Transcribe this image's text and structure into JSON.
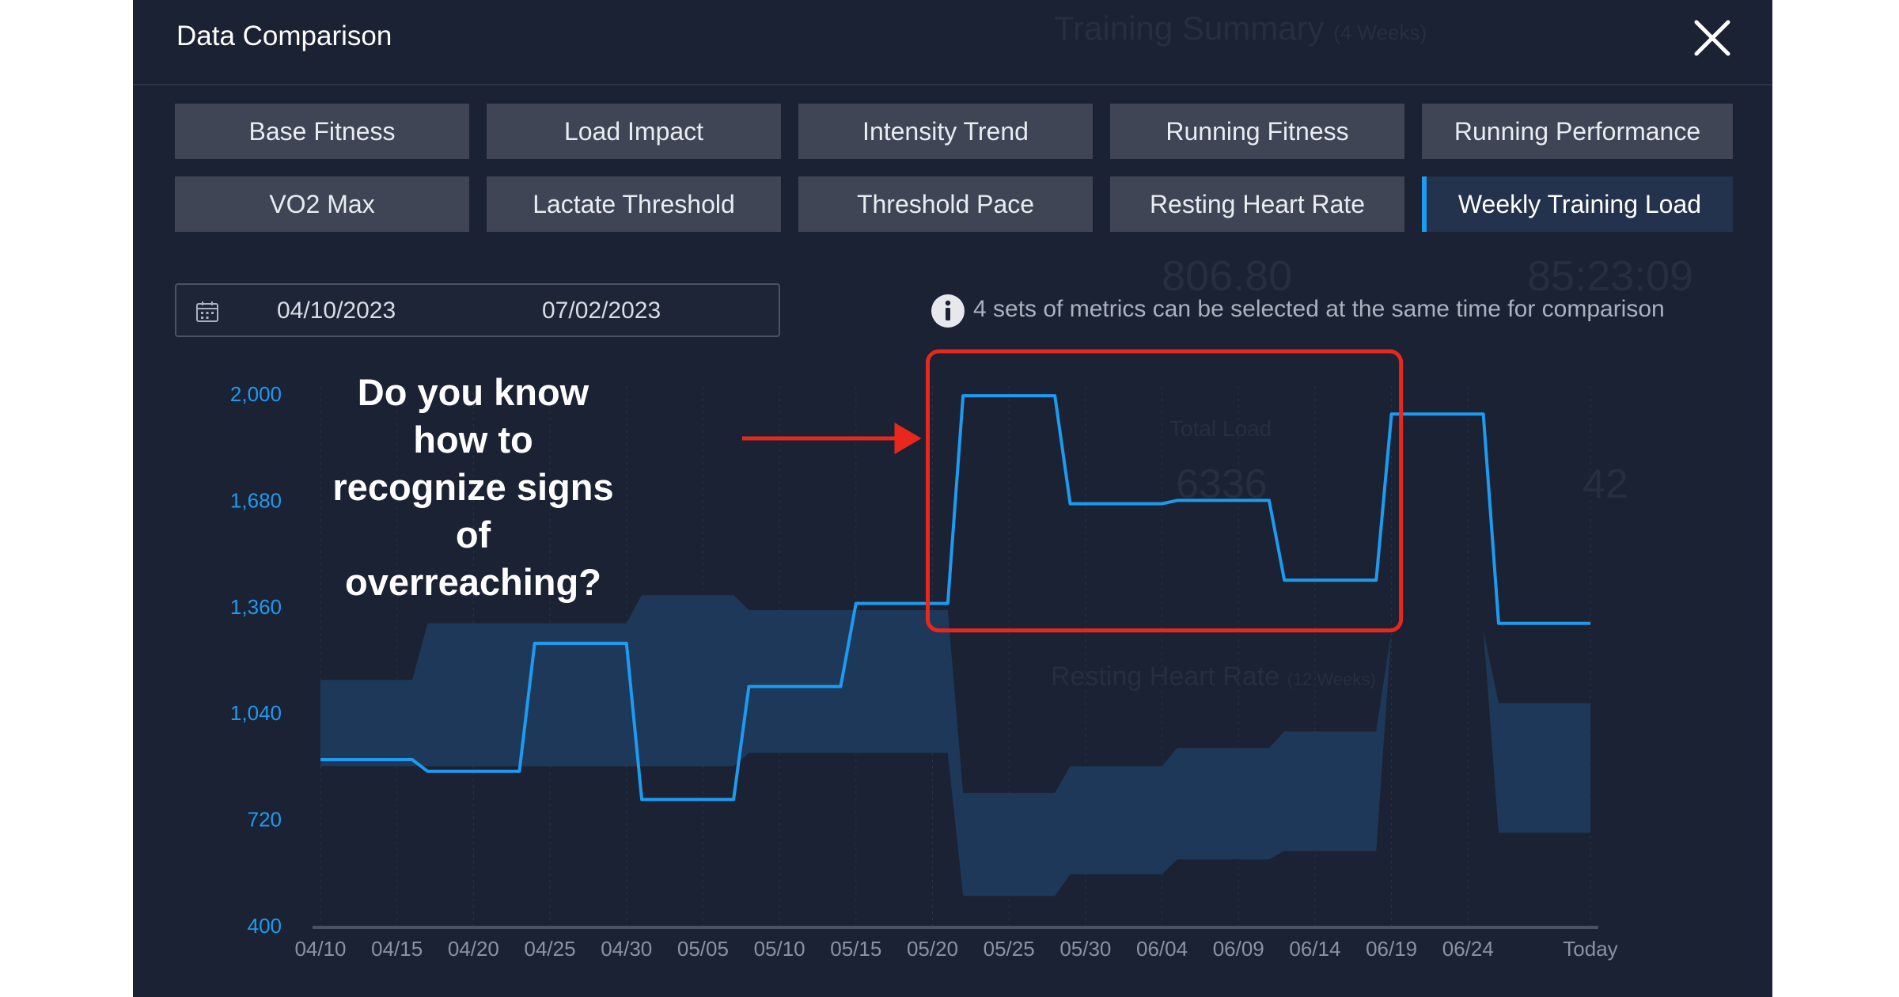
{
  "dialog": {
    "title": "Data Comparison"
  },
  "tabs": [
    {
      "label": "Base Fitness",
      "active": false
    },
    {
      "label": "Load Impact",
      "active": false
    },
    {
      "label": "Intensity Trend",
      "active": false
    },
    {
      "label": "Running Fitness",
      "active": false
    },
    {
      "label": "Running Performance",
      "active": false
    },
    {
      "label": "VO2 Max",
      "active": false
    },
    {
      "label": "Lactate Threshold",
      "active": false
    },
    {
      "label": "Threshold Pace",
      "active": false
    },
    {
      "label": "Resting Heart Rate",
      "active": false
    },
    {
      "label": "Weekly Training Load",
      "active": true
    }
  ],
  "date_range": {
    "start": "04/10/2023",
    "end": "07/02/2023"
  },
  "info": {
    "text": "4 sets of metrics can be selected at the same time for comparison"
  },
  "annotation": {
    "text": "Do you know how to recognize signs of overreaching?"
  },
  "background_ghost": {
    "summary_title": "Training Summary",
    "summary_period": "(4 Weeks)",
    "value_1": "806.80",
    "value_2": "85:23:09",
    "total_load_label": "Total Load",
    "total_load_value": "6336",
    "value_3": "42",
    "rhr_title": "Resting Heart Rate",
    "rhr_period": "(12 Weeks)"
  },
  "colors": {
    "background": "#1b2233",
    "line": "#1d9bf0",
    "band": "#1f3a5c",
    "highlight": "#e8281c",
    "axis_label": "#1d9bf0"
  },
  "chart_data": {
    "type": "line",
    "title": "",
    "x": [
      "04/10",
      "04/15",
      "04/20",
      "04/25",
      "04/30",
      "05/05",
      "05/10",
      "05/15",
      "05/20",
      "05/25",
      "05/30",
      "06/04",
      "06/09",
      "06/14",
      "06/19",
      "06/24",
      "Today"
    ],
    "yticks": [
      2000,
      1680,
      1360,
      1040,
      720,
      400
    ],
    "ylim": [
      400,
      2000
    ],
    "series": [
      {
        "role": "weekly-load-line",
        "points": [
          [
            0,
            900
          ],
          [
            6,
            900
          ],
          [
            7,
            865
          ],
          [
            13,
            865
          ],
          [
            14,
            1250
          ],
          [
            20,
            1250
          ],
          [
            21,
            780
          ],
          [
            27,
            780
          ],
          [
            28,
            1120
          ],
          [
            34,
            1120
          ],
          [
            35,
            1370
          ],
          [
            41,
            1370
          ],
          [
            42,
            1995
          ],
          [
            48,
            1995
          ],
          [
            49,
            1670
          ],
          [
            55,
            1670
          ],
          [
            56,
            1680
          ],
          [
            62,
            1680
          ],
          [
            63,
            1440
          ],
          [
            69,
            1440
          ],
          [
            70,
            1940
          ],
          [
            76,
            1940
          ],
          [
            77,
            1310
          ],
          [
            83,
            1310
          ]
        ]
      },
      {
        "role": "optimal-range-band",
        "upper": [
          [
            0,
            1140
          ],
          [
            6,
            1140
          ],
          [
            7,
            1310
          ],
          [
            13,
            1310
          ],
          [
            20,
            1310
          ],
          [
            21,
            1395
          ],
          [
            27,
            1395
          ],
          [
            28,
            1350
          ],
          [
            34,
            1350
          ],
          [
            41,
            1350
          ],
          [
            42,
            800
          ],
          [
            48,
            800
          ],
          [
            49,
            880
          ],
          [
            55,
            880
          ],
          [
            56,
            935
          ],
          [
            62,
            935
          ],
          [
            63,
            985
          ],
          [
            69,
            985
          ],
          [
            70,
            1290
          ],
          [
            76,
            1290
          ],
          [
            77,
            1070
          ],
          [
            83,
            1070
          ]
        ],
        "lower": [
          [
            0,
            880
          ],
          [
            6,
            880
          ],
          [
            7,
            880
          ],
          [
            13,
            880
          ],
          [
            20,
            880
          ],
          [
            21,
            880
          ],
          [
            27,
            880
          ],
          [
            28,
            920
          ],
          [
            34,
            920
          ],
          [
            41,
            920
          ],
          [
            42,
            490
          ],
          [
            48,
            490
          ],
          [
            49,
            555
          ],
          [
            55,
            555
          ],
          [
            56,
            600
          ],
          [
            62,
            600
          ],
          [
            63,
            625
          ],
          [
            69,
            625
          ],
          [
            70,
            1290
          ],
          [
            76,
            1290
          ],
          [
            77,
            680
          ],
          [
            83,
            680
          ]
        ]
      }
    ],
    "grid": true,
    "highlight": {
      "x_range": [
        "05/20",
        "06/19"
      ],
      "label": ""
    }
  }
}
